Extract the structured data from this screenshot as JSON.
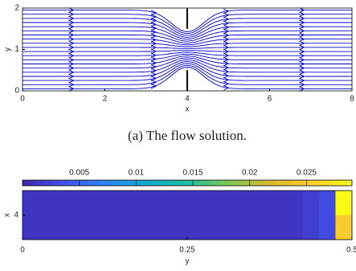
{
  "chart_data": [
    {
      "type": "streamline",
      "xlabel": "x",
      "ylabel": "y",
      "caption": "(a) The flow solution.",
      "xlim": [
        0,
        8
      ],
      "ylim": [
        0,
        2
      ],
      "xticks": [
        0,
        2,
        4,
        6,
        8
      ],
      "yticks": [
        0,
        1,
        2
      ],
      "color": "#0000cc"
    },
    {
      "type": "heatmap",
      "xlabel": "y",
      "ylabel": "x",
      "x_edges": [
        0,
        0.425,
        0.45,
        0.475,
        0.5
      ],
      "y_edges": [
        3.75,
        4,
        4.25
      ],
      "values": [
        [
          0.0012,
          0.002,
          0.003,
          0.025
        ],
        [
          0.0012,
          0.002,
          0.003,
          0.029
        ]
      ],
      "xlim": [
        0,
        0.5
      ],
      "ylim": [
        3.75,
        4.25
      ],
      "xticks": [
        0,
        0.25,
        0.5
      ],
      "yticks": [
        4
      ],
      "clim": [
        0,
        0.029
      ],
      "cticks": [
        0.005,
        0.01,
        0.015,
        0.02,
        0.025
      ],
      "colormap": [
        "#3e26a8",
        "#4352f0",
        "#2d86f3",
        "#14a8d3",
        "#1fbca0",
        "#7ec957",
        "#d8ba30",
        "#fcce2e",
        "#f9fb15"
      ]
    }
  ]
}
